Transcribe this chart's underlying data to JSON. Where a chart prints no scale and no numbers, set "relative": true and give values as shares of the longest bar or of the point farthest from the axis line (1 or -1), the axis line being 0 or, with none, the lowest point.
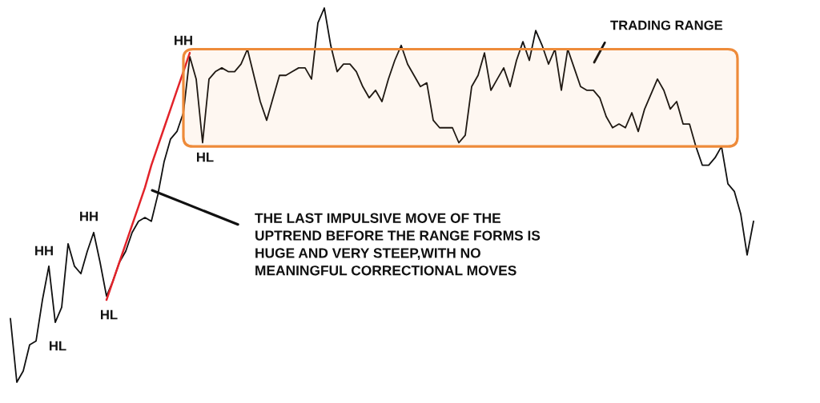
{
  "chart_data": {
    "type": "line",
    "relative": true,
    "categories": [
      null,
      null,
      null,
      null,
      null,
      null,
      null,
      null,
      null,
      null,
      null,
      null,
      null,
      null,
      null,
      null,
      null,
      null,
      null,
      null,
      null,
      null,
      null,
      null,
      null,
      null,
      null,
      null,
      null,
      null,
      null,
      null,
      null,
      null,
      null,
      null,
      null,
      null,
      null,
      null,
      null,
      null,
      null,
      null,
      null,
      null,
      null,
      null,
      null,
      null,
      null,
      null,
      null,
      null,
      null,
      null,
      null,
      null,
      null,
      null,
      null,
      null,
      null,
      null,
      null,
      null,
      null,
      null,
      null,
      null,
      null,
      null,
      null,
      null,
      null,
      null,
      null,
      null,
      null,
      null,
      null,
      null,
      null,
      null,
      null,
      null,
      null,
      null,
      null,
      null,
      null,
      null,
      null,
      null,
      null,
      null,
      null,
      null,
      null,
      null,
      null,
      null,
      null,
      null,
      null,
      null,
      null,
      null,
      null,
      null,
      null,
      null,
      null,
      null,
      null,
      null,
      null
    ],
    "series": [
      {
        "color": "#111111",
        "values": [
          0.17,
          0,
          0.03,
          0.1,
          0.11,
          0.22,
          0.31,
          0.16,
          0.2,
          0.37,
          0.31,
          0.29,
          0.35,
          0.4,
          0.32,
          0.23,
          0.27,
          0.32,
          0.35,
          0.4,
          0.43,
          0.44,
          0.43,
          0.5,
          0.59,
          0.65,
          0.67,
          0.72,
          0.87,
          0.81,
          0.64,
          0.81,
          0.83,
          0.84,
          0.83,
          0.83,
          0.85,
          0.89,
          0.82,
          0.75,
          0.7,
          0.76,
          0.82,
          0.82,
          0.83,
          0.84,
          0.84,
          0.81,
          0.96,
          1,
          0.9,
          0.83,
          0.85,
          0.85,
          0.83,
          0.79,
          0.76,
          0.78,
          0.75,
          0.81,
          0.86,
          0.9,
          0.85,
          0.82,
          0.79,
          0.8,
          0.7,
          0.68,
          0.68,
          0.68,
          0.64,
          0.66,
          0.79,
          0.82,
          0.88,
          0.78,
          0.81,
          0.84,
          0.79,
          0.86,
          0.91,
          0.86,
          0.94,
          0.9,
          0.85,
          0.89,
          0.78,
          0.89,
          0.84,
          0.79,
          0.78,
          0.78,
          0.76,
          0.71,
          0.68,
          0.69,
          0.68,
          0.72,
          0.67,
          0.73,
          0.77,
          0.81,
          0.78,
          0.73,
          0.75,
          0.69,
          0.69,
          0.63,
          0.58,
          0.58,
          0.6,
          0.63,
          0.53,
          0.51,
          0.45,
          0.34,
          0.43
        ]
      },
      {
        "color": "#e2232a",
        "values": [
          null,
          null,
          null,
          null,
          null,
          null,
          null,
          null,
          null,
          null,
          null,
          null,
          null,
          null,
          null,
          0.22,
          0.27,
          0.32,
          0.37,
          0.42,
          0.47,
          0.52,
          0.58,
          0.63,
          0.68,
          0.73,
          0.78,
          0.83,
          0.88,
          null,
          null,
          null,
          null,
          null,
          null,
          null,
          null,
          null,
          null,
          null,
          null,
          null,
          null,
          null,
          null,
          null,
          null,
          null,
          null,
          null,
          null,
          null,
          null,
          null,
          null,
          null,
          null,
          null,
          null,
          null,
          null,
          null,
          null,
          null,
          null,
          null,
          null,
          null,
          null,
          null,
          null,
          null,
          null,
          null,
          null,
          null,
          null,
          null,
          null,
          null,
          null,
          null,
          null,
          null,
          null,
          null,
          null,
          null,
          null,
          null,
          null,
          null,
          null,
          null,
          null,
          null,
          null,
          null,
          null,
          null,
          null,
          null,
          null,
          null,
          null,
          null,
          null,
          null,
          null,
          null,
          null,
          null,
          null,
          null,
          null,
          null,
          null
        ]
      }
    ],
    "bands": [
      {
        "axis": "y",
        "from": 0.63,
        "to": 0.89,
        "label": "TRADING RANGE",
        "color": "#ee8b3a"
      }
    ],
    "annotations": [
      "HH",
      "HL",
      "HH",
      "HL",
      "HH",
      "HL",
      "THE LAST IMPULSIVE MOVE OF THE\nUPTREND BEFORE THE RANGE FORMS IS\nHUGE AND VERY STEEP,WITH NO\nMEANINGFUL CORRECTIONAL MOVES"
    ]
  }
}
